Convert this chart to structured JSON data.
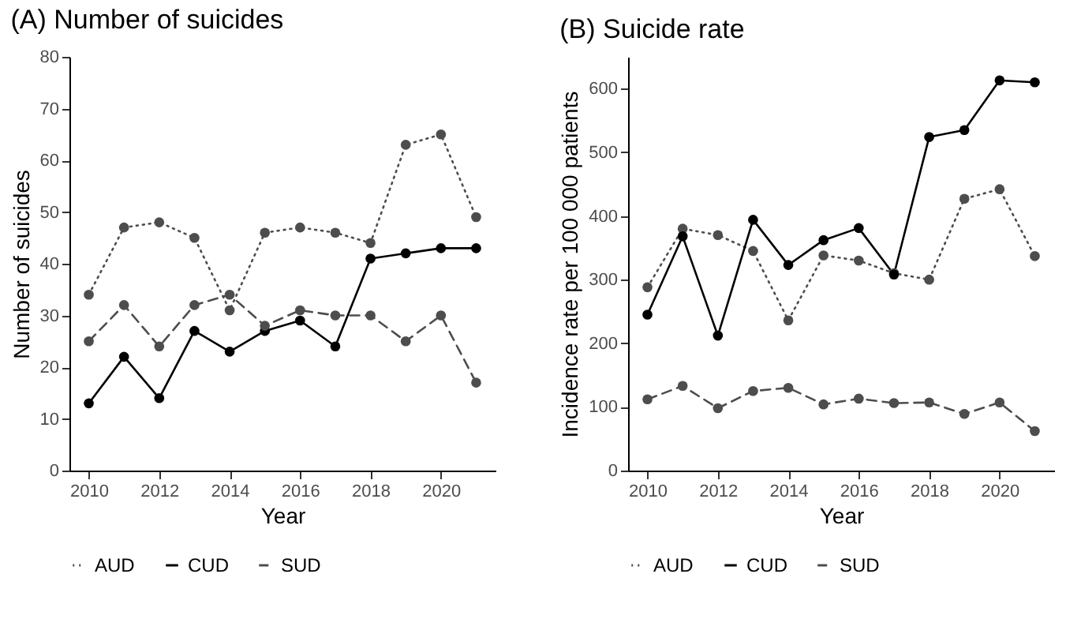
{
  "chart_data": [
    {
      "type": "line",
      "title": "(A) Number of suicides",
      "xlabel": "Year",
      "ylabel": "Number of suicides",
      "x": [
        2010,
        2011,
        2012,
        2013,
        2014,
        2015,
        2016,
        2017,
        2018,
        2019,
        2020,
        2021
      ],
      "xlim": [
        2009.45,
        2021.55
      ],
      "xticks": [
        2010,
        2012,
        2014,
        2016,
        2018,
        2020
      ],
      "ylim": [
        0,
        80
      ],
      "yticks": [
        0,
        10,
        20,
        30,
        40,
        50,
        60,
        70,
        80
      ],
      "grid": false,
      "legend": "bottom",
      "marker": "circle",
      "series": [
        {
          "name": "AUD",
          "color": "#4d4d4d",
          "line_style": "dotted",
          "values": [
            34,
            47,
            48,
            45,
            31,
            46,
            47,
            46,
            44,
            63,
            65,
            49
          ]
        },
        {
          "name": "CUD",
          "color": "#000000",
          "line_style": "solid",
          "values": [
            13,
            22,
            14,
            27,
            23,
            27,
            29,
            24,
            41,
            42,
            43,
            43
          ]
        },
        {
          "name": "SUD",
          "color": "#4d4d4d",
          "line_style": "dashed",
          "values": [
            25,
            32,
            24,
            32,
            34,
            28,
            31,
            30,
            30,
            25,
            30,
            17
          ]
        }
      ]
    },
    {
      "type": "line",
      "title": "(B) Suicide rate",
      "xlabel": "Year",
      "ylabel": "Incidence rate per 100 000 patients",
      "x": [
        2010,
        2011,
        2012,
        2013,
        2014,
        2015,
        2016,
        2017,
        2018,
        2019,
        2020,
        2021
      ],
      "xlim": [
        2009.45,
        2021.55
      ],
      "xticks": [
        2010,
        2012,
        2014,
        2016,
        2018,
        2020
      ],
      "ylim": [
        0,
        650
      ],
      "yticks": [
        0,
        100,
        200,
        300,
        400,
        500,
        600
      ],
      "grid": false,
      "legend": "bottom",
      "marker": "circle",
      "series": [
        {
          "name": "AUD",
          "color": "#4d4d4d",
          "line_style": "dotted",
          "values": [
            288,
            380,
            370,
            345,
            236,
            338,
            330,
            310,
            300,
            427,
            442,
            337
          ]
        },
        {
          "name": "CUD",
          "color": "#000000",
          "line_style": "solid",
          "values": [
            245,
            368,
            212,
            394,
            323,
            362,
            381,
            308,
            524,
            535,
            613,
            610
          ]
        },
        {
          "name": "SUD",
          "color": "#4d4d4d",
          "line_style": "dashed",
          "values": [
            112,
            133,
            98,
            125,
            130,
            104,
            113,
            106,
            107,
            89,
            107,
            62
          ]
        }
      ]
    }
  ]
}
